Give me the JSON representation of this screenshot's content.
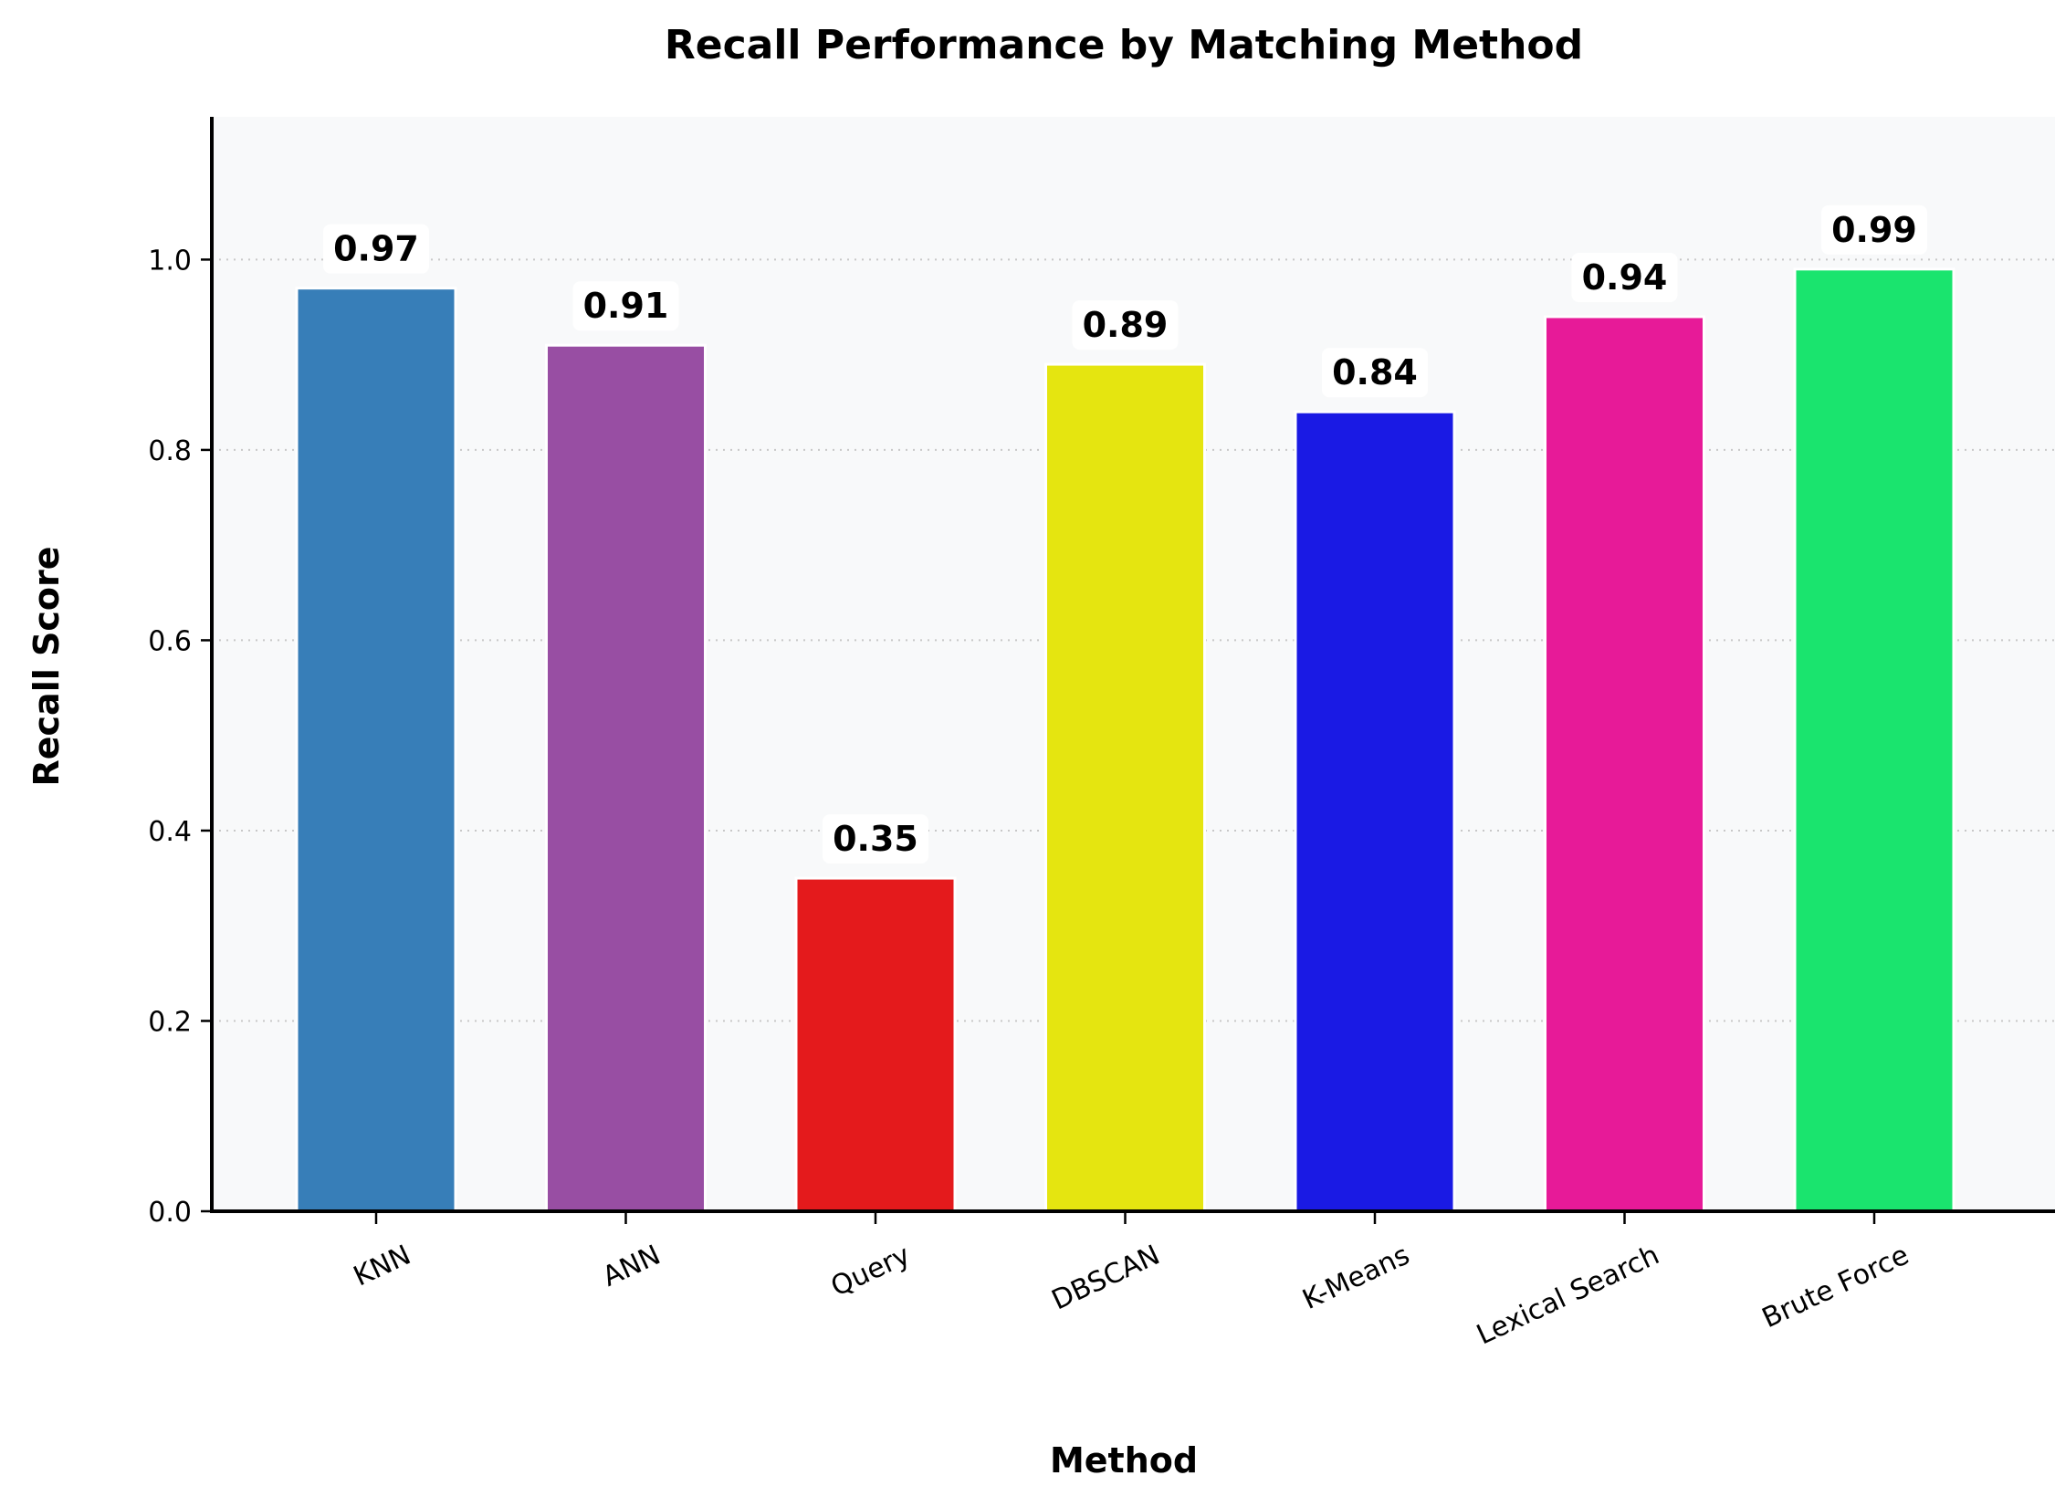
{
  "chart_data": {
    "type": "bar",
    "title": "Recall Performance by Matching Method",
    "xlabel": "Method",
    "ylabel": "Recall Score",
    "categories": [
      "KNN",
      "ANN",
      "Query",
      "DBSCAN",
      "K-Means",
      "Lexical Search",
      "Brute Force"
    ],
    "values": [
      0.97,
      0.91,
      0.35,
      0.89,
      0.84,
      0.94,
      0.99
    ],
    "value_labels": [
      "0.97",
      "0.91",
      "0.35",
      "0.89",
      "0.84",
      "0.94",
      "0.99"
    ],
    "colors": [
      "#377eb8",
      "#984ea3",
      "#e41a1c",
      "#e5e510",
      "#1a1ae4",
      "#e71a98",
      "#1ae46e"
    ],
    "ylim": [
      0,
      1.15
    ],
    "yticks": [
      0.0,
      0.2,
      0.4,
      0.6,
      0.8,
      1.0
    ],
    "ytick_labels": [
      "0.0",
      "0.2",
      "0.4",
      "0.6",
      "0.8",
      "1.0"
    ],
    "grid": "horizontal-dotted",
    "legend": "none",
    "plot_background": "#f8f9fa"
  }
}
